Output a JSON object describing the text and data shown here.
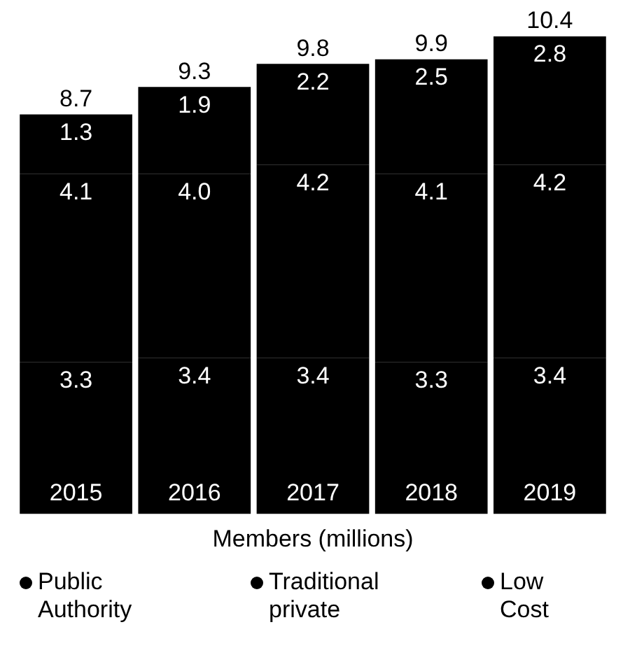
{
  "chart_data": {
    "type": "bar",
    "stacked": true,
    "categories": [
      "2015",
      "2016",
      "2017",
      "2018",
      "2019"
    ],
    "xlabel": "Members (millions)",
    "series": [
      {
        "name": "Public Authority",
        "color": "#000000",
        "values": [
          3.3,
          3.4,
          3.4,
          3.3,
          3.4
        ],
        "value_labels": [
          "3.3",
          "3.4",
          "3.4",
          "3.3",
          "3.4"
        ]
      },
      {
        "name": "Traditional private",
        "color": "#000000",
        "values": [
          4.1,
          4.0,
          4.2,
          4.1,
          4.2
        ],
        "value_labels": [
          "4.1",
          "4.0",
          "4.2",
          "4.1",
          "4.2"
        ]
      },
      {
        "name": "Low Cost",
        "color": "#000000",
        "values": [
          1.3,
          1.9,
          2.2,
          2.5,
          2.8
        ],
        "value_labels": [
          "1.3",
          "1.9",
          "2.2",
          "2.5",
          "2.8"
        ]
      }
    ],
    "totals": [
      "8.7",
      "9.3",
      "9.8",
      "9.9",
      "10.4"
    ],
    "tick_labels": "x",
    "grid": false,
    "legend": "bottom",
    "marker": "circle"
  }
}
